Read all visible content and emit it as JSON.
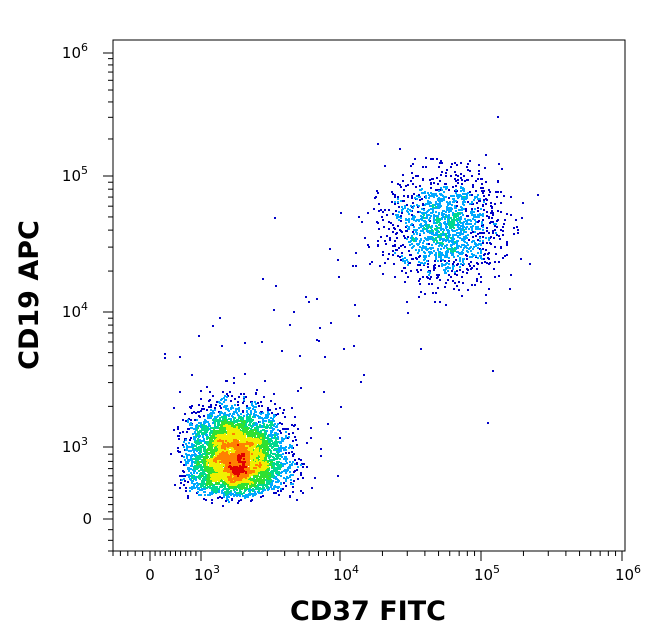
{
  "chart_data": {
    "type": "scatter",
    "title": "",
    "xlabel": "CD37 FITC",
    "ylabel": "CD19 APC",
    "x_scale": "biexponential",
    "y_scale": "biexponential",
    "xlim": [
      -500,
      1000000
    ],
    "ylim": [
      -300,
      1000000
    ],
    "x_ticks": [
      {
        "value": 0,
        "base": "0",
        "exp": ""
      },
      {
        "value": 1000,
        "base": "10",
        "exp": "3"
      },
      {
        "value": 10000,
        "base": "10",
        "exp": "4"
      },
      {
        "value": 100000,
        "base": "10",
        "exp": "5"
      },
      {
        "value": 1000000,
        "base": "10",
        "exp": "6"
      }
    ],
    "y_ticks": [
      {
        "value": 0,
        "base": "0",
        "exp": ""
      },
      {
        "value": 1000,
        "base": "10",
        "exp": "3"
      },
      {
        "value": 10000,
        "base": "10",
        "exp": "4"
      },
      {
        "value": 100000,
        "base": "10",
        "exp": "5"
      },
      {
        "value": 1000000,
        "base": "10",
        "exp": "6"
      }
    ],
    "grid": false,
    "legend": "none",
    "color_scale": "density (blue-cyan-green-yellow-red)",
    "colors": [
      "#0000c8",
      "#00a8ff",
      "#00d890",
      "#30e030",
      "#f0f000",
      "#ff8000",
      "#e00000"
    ],
    "populations": [
      {
        "center_x": 1800,
        "center_y": 850,
        "spread_x_decades": 0.17,
        "spread_y_decades": 0.17,
        "events": 5200
      },
      {
        "center_x": 55000,
        "center_y": 42000,
        "spread_x_decades": 0.2,
        "spread_y_decades": 0.2,
        "events": 1500
      },
      {
        "center_x": 4500,
        "center_y": 5000,
        "spread_x_decades": 0.5,
        "spread_y_decades": 0.5,
        "events": 60
      }
    ]
  }
}
